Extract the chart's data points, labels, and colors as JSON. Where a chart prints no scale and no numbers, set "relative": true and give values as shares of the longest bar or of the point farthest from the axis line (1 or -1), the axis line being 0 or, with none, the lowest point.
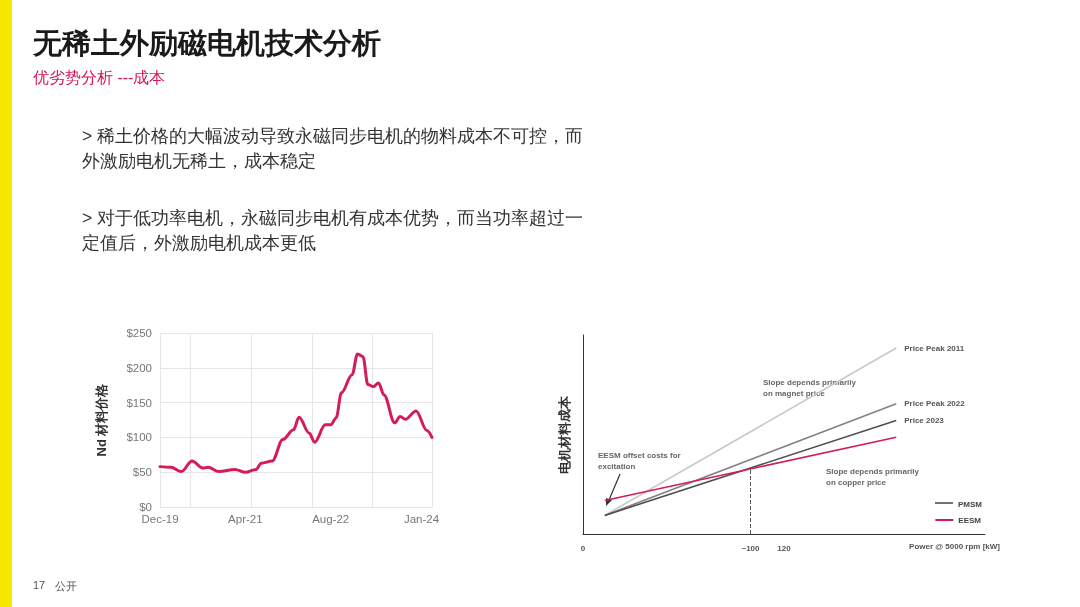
{
  "chart_data": [
    {
      "type": "other",
      "title": "无稀土外励磁电机技术分析",
      "subtitle": "优劣势分析 ---成本",
      "annotations": [
        "> 稀土价格的大幅波动导致永磁同步电机的物料成本不可控，而外激励电机无稀土，成本稳定",
        "> 对于低功率电机，永磁同步电机有成本优势，而当功率超过一定值后，外激励电机成本更低",
        "17",
        "公开"
      ]
    },
    {
      "type": "line",
      "ylabel": "Nd 材料价格",
      "x": [
        "2019-12",
        "2020-02",
        "2020-04",
        "2020-06",
        "2020-08",
        "2020-09",
        "2020-11",
        "2021-02",
        "2021-04",
        "2021-06",
        "2021-07",
        "2021-09",
        "2021-11",
        "2022-01",
        "2022-02",
        "2022-04",
        "2022-05",
        "2022-07",
        "2022-08",
        "2022-09",
        "2022-10",
        "2022-12",
        "2023-01",
        "2023-02",
        "2023-03",
        "2023-04",
        "2023-05",
        "2023-06",
        "2023-08",
        "2023-09",
        "2023-10",
        "2023-12",
        "2024-02",
        "2024-03"
      ],
      "series": [
        {
          "color": "#d21c5b",
          "values": [
            58,
            57,
            51,
            66,
            56,
            57,
            51,
            54,
            50,
            54,
            63,
            66,
            97,
            111,
            129,
            106,
            93,
            118,
            118,
            128,
            164,
            190,
            220,
            216,
            176,
            173,
            178,
            161,
            121,
            130,
            126,
            138,
            110,
            100
          ]
        }
      ],
      "xlim": [
        "2019-12",
        "2024-03"
      ],
      "xticks": [
        {
          "value": "2019-12",
          "label": "Dec-19"
        },
        {
          "value": "2021-04",
          "label": "Apr-21"
        },
        {
          "value": "2022-08",
          "label": "Aug-22"
        },
        {
          "value": "2024-01",
          "label": "Jan-24"
        }
      ],
      "ylim": [
        0,
        250
      ],
      "yticks": [
        {
          "value": 0,
          "label": "$0"
        },
        {
          "value": 50,
          "label": "$50"
        },
        {
          "value": 100,
          "label": "$100"
        },
        {
          "value": 150,
          "label": "$150"
        },
        {
          "value": 200,
          "label": "$200"
        },
        {
          "value": 250,
          "label": "$250"
        }
      ],
      "grid": true,
      "marker": "none"
    },
    {
      "type": "line",
      "ylabel": "电机材料成本",
      "xlabel": "Power @ 5000 rpm [kW]",
      "relative": true,
      "x": [
        13,
        187
      ],
      "series": [
        {
          "name": "Price Peak 2011",
          "color": "#c8c8c8",
          "values": [
            0.1,
            1
          ]
        },
        {
          "name": "Price Peak 2022",
          "color": "#828282",
          "values": [
            0.1,
            0.7
          ]
        },
        {
          "name": "Price 2023",
          "color": "#4f4f4f",
          "values": [
            0.1,
            0.61
          ]
        },
        {
          "name": "EESM",
          "color": "#d21c5b",
          "values": [
            0.18,
            0.52
          ]
        }
      ],
      "xlim": [
        0,
        240
      ],
      "xticks": [
        0,
        {
          "value": 100,
          "label": "~100"
        },
        120
      ],
      "ref_lines": [
        {
          "axis": "x",
          "value": 100,
          "line_style": "dashed",
          "color": "#555555"
        }
      ],
      "annotations": [
        "Slope depends primarily\non magnet price",
        "Slope depends primarily\non copper price",
        "EESM offset costs for\nexcitation",
        "PMSM"
      ],
      "legend": "bottom right",
      "grid": false,
      "marker": "none"
    }
  ]
}
